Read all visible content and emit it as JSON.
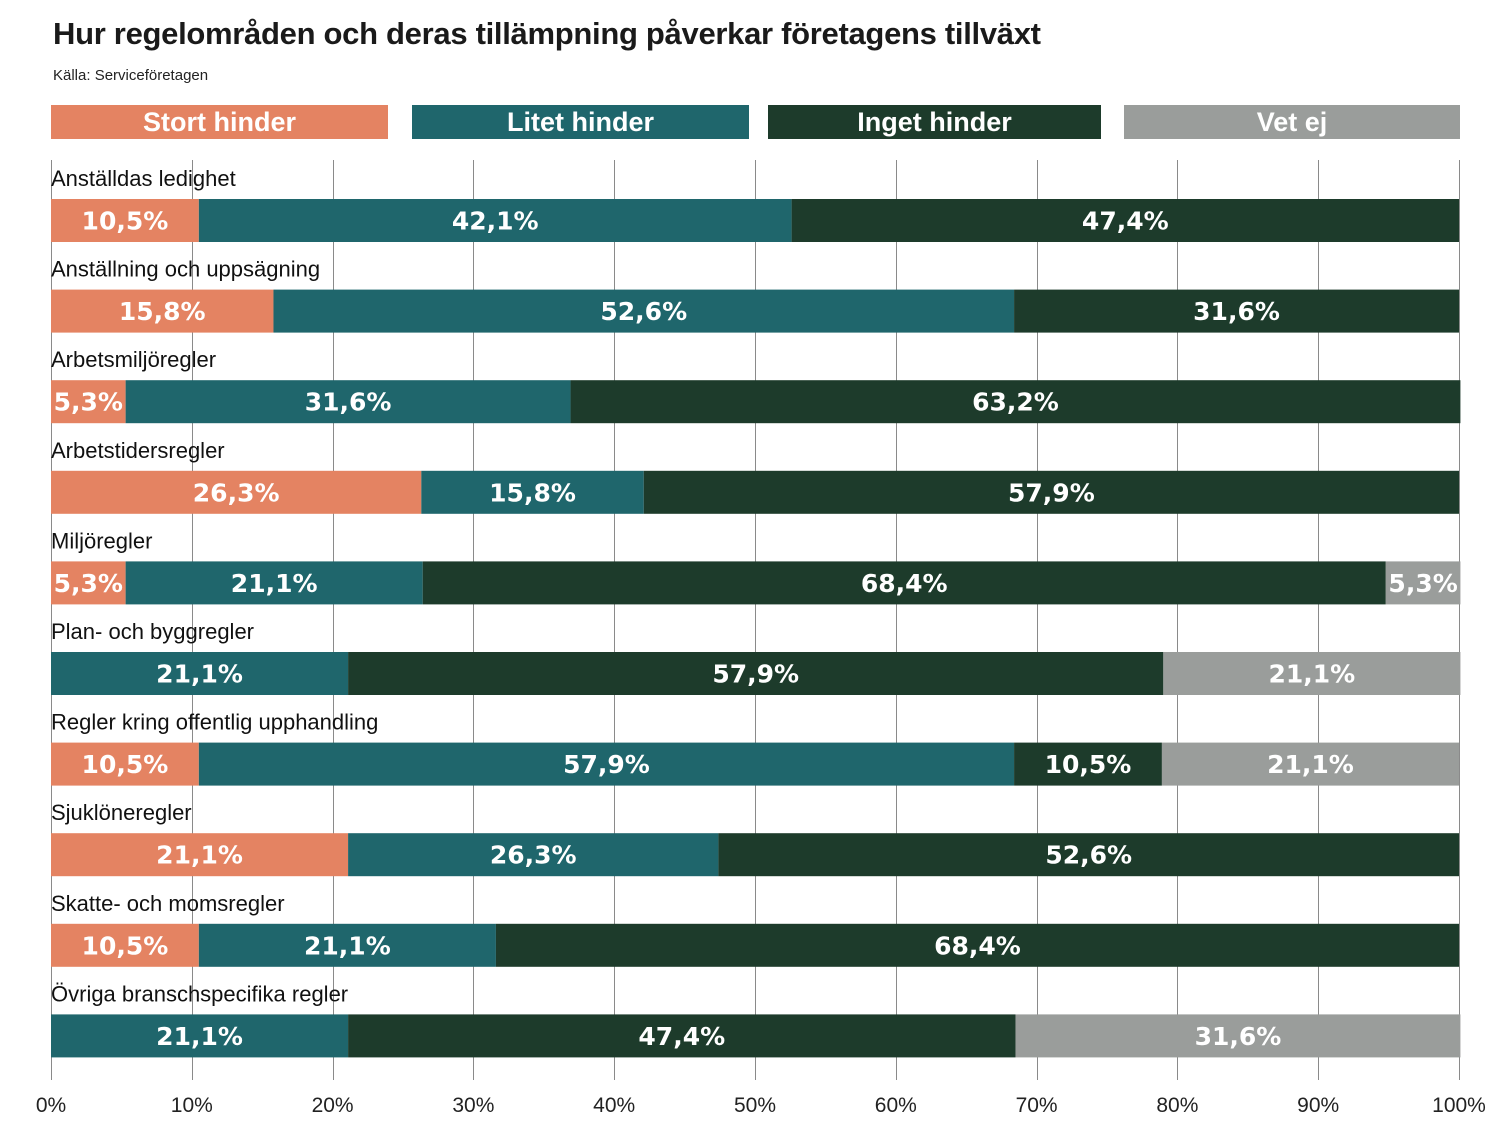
{
  "title": "Hur regelområden och deras tillämpning påverkar företagens tillväxt",
  "source": "Källa: Serviceföretagen",
  "chart_data": {
    "type": "bar",
    "orientation": "horizontal",
    "stacked": true,
    "title": "Hur regelområden och deras tillämpning påverkar företagens tillväxt",
    "subtitle": "Källa: Serviceföretagen",
    "xlabel": "",
    "ylabel": "",
    "xlim": [
      0,
      100
    ],
    "grid": true,
    "legend_position": "top",
    "x_ticks": [
      "0%",
      "10%",
      "20%",
      "30%",
      "40%",
      "50%",
      "60%",
      "70%",
      "80%",
      "90%",
      "100%"
    ],
    "categories": [
      "Anställdas ledighet",
      "Anställning och uppsägning",
      "Arbetsmiljöregler",
      "Arbetstidersregler",
      "Miljöregler",
      "Plan- och byggregler",
      "Regler kring offentlig upphandling",
      "Sjuklöneregler",
      "Skatte- och momsregler",
      "Övriga branschspecifika regler"
    ],
    "series": [
      {
        "name": "Stort hinder",
        "color": "#e48362",
        "values": [
          10.5,
          15.8,
          5.3,
          26.3,
          5.3,
          0,
          10.5,
          21.1,
          10.5,
          0
        ],
        "labels": [
          "10,5%",
          "15,8%",
          "5,3%",
          "26,3%",
          "5,3%",
          "",
          "10,5%",
          "21,1%",
          "10,5%",
          ""
        ]
      },
      {
        "name": "Litet hinder",
        "color": "#1f666c",
        "values": [
          42.1,
          52.6,
          31.6,
          15.8,
          21.1,
          21.1,
          57.9,
          26.3,
          21.1,
          21.1
        ],
        "labels": [
          "42,1%",
          "52,6%",
          "31,6%",
          "15,8%",
          "21,1%",
          "21,1%",
          "57,9%",
          "26,3%",
          "21,1%",
          "21,1%"
        ]
      },
      {
        "name": "Inget hinder",
        "color": "#1d3b2b",
        "values": [
          47.4,
          31.6,
          63.2,
          57.9,
          68.4,
          57.9,
          10.5,
          52.6,
          68.4,
          47.4
        ],
        "labels": [
          "47,4%",
          "31,6%",
          "63,2%",
          "57,9%",
          "68,4%",
          "57,9%",
          "10,5%",
          "52,6%",
          "68,4%",
          "47,4%"
        ]
      },
      {
        "name": "Vet ej",
        "color": "#9a9d9b",
        "values": [
          0,
          0,
          0,
          0,
          5.3,
          21.1,
          21.1,
          0,
          0,
          31.6
        ],
        "labels": [
          "",
          "",
          "",
          "",
          "5,3%",
          "21,1%",
          "21,1%",
          "",
          "",
          "31,6%"
        ]
      }
    ]
  }
}
